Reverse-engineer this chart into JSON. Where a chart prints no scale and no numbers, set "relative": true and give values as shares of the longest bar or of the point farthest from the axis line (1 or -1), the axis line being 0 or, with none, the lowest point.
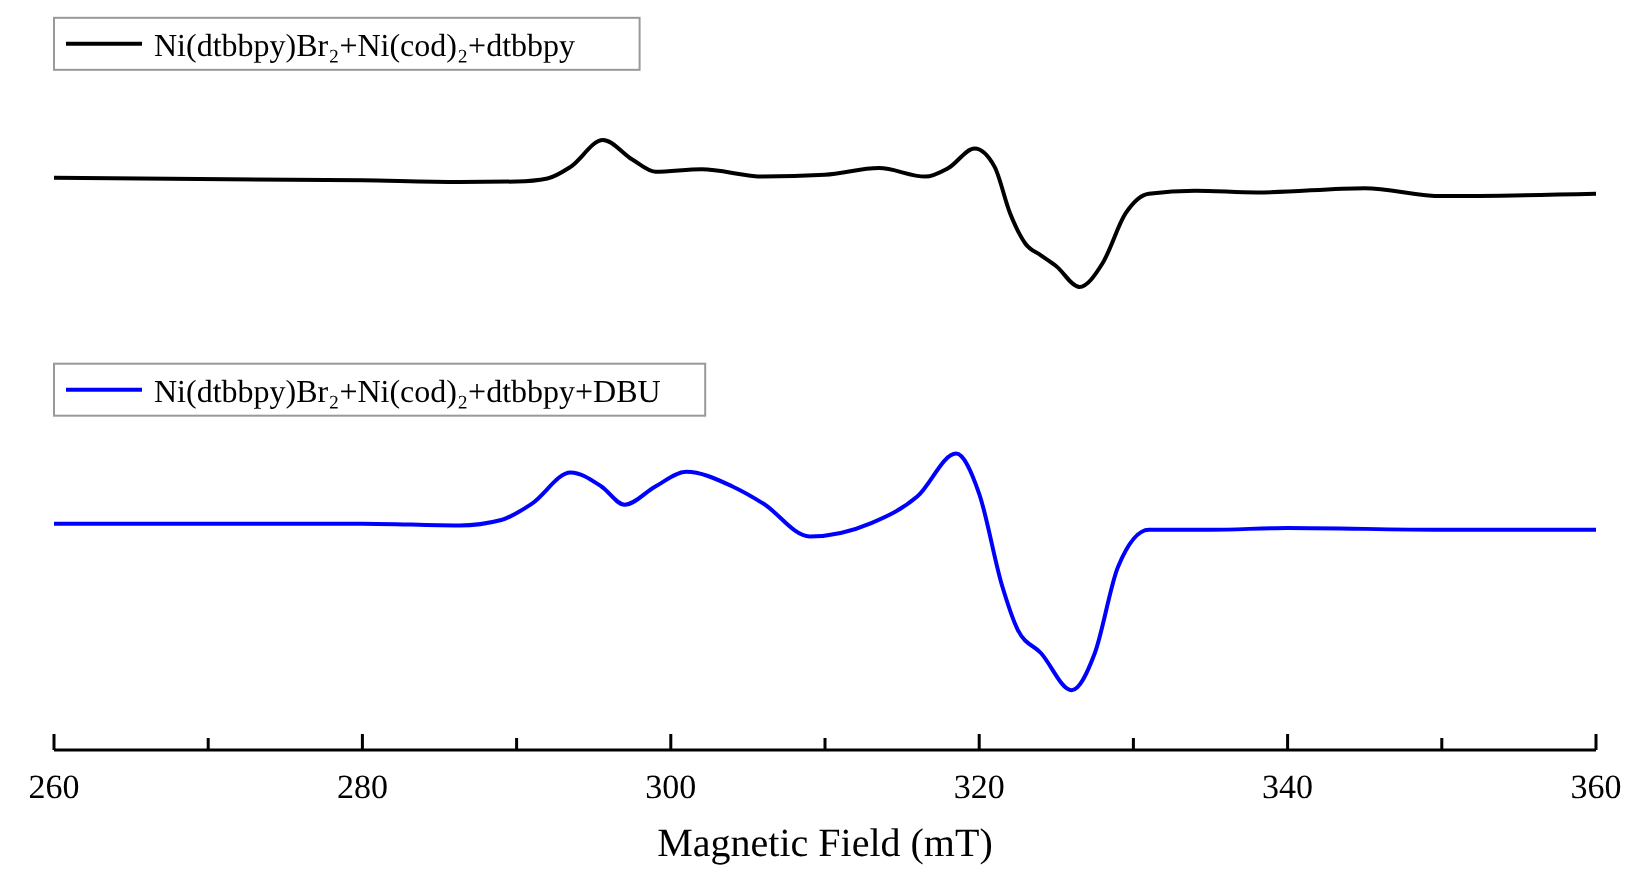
{
  "chart_data": {
    "type": "line",
    "xlabel": "Magnetic Field (mT)",
    "relative": true,
    "legend": "top left",
    "marker": "none",
    "line_style": "solid",
    "grid": false,
    "xlim": [
      260,
      360
    ],
    "xticks": [
      260,
      {
        "value": 270,
        "label": null
      },
      280,
      {
        "value": 290,
        "label": null
      },
      300,
      {
        "value": 310,
        "label": null
      },
      320,
      {
        "value": 330,
        "label": null
      },
      340,
      {
        "value": 350,
        "label": null
      },
      360
    ],
    "series": [
      {
        "name": "Ni(dtbbpy)Br₂+Ni(cod)₂+dtbbpy",
        "color": "#000000",
        "x": [
          260,
          280,
          286.3,
          290,
          292,
          293.5,
          295.6,
          297.5,
          299,
          302,
          306,
          310,
          313.5,
          316.5,
          318,
          319.7,
          321,
          322,
          323,
          324,
          325,
          326.5,
          328,
          329.5,
          331,
          334,
          338,
          345,
          350,
          360
        ],
        "values": [
          0.938,
          0.934,
          0.931,
          0.932,
          0.937,
          0.956,
          1,
          0.968,
          0.948,
          0.952,
          0.94,
          0.943,
          0.954,
          0.94,
          0.954,
          0.986,
          0.956,
          0.88,
          0.83,
          0.811,
          0.793,
          0.759,
          0.798,
          0.88,
          0.912,
          0.917,
          0.914,
          0.921,
          0.908,
          0.912
        ]
      },
      {
        "name": "Ni(dtbbpy)Br₂+Ni(cod)₂+dtbbpy+DBU",
        "color": "#0000ff",
        "x": [
          260,
          280,
          286.3,
          289,
          291,
          293.5,
          295.5,
          297,
          299,
          301,
          304,
          306,
          309,
          313,
          316,
          318.5,
          320,
          321.5,
          322.5,
          324,
          326,
          327.5,
          329,
          331,
          335,
          340,
          350,
          360
        ],
        "values": [
          0.371,
          0.371,
          0.368,
          0.377,
          0.404,
          0.455,
          0.432,
          0.402,
          0.432,
          0.456,
          0.432,
          0.404,
          0.35,
          0.372,
          0.416,
          0.486,
          0.42,
          0.268,
          0.197,
          0.159,
          0.098,
          0.159,
          0.3,
          0.361,
          0.361,
          0.364,
          0.361,
          0.361
        ]
      }
    ]
  }
}
